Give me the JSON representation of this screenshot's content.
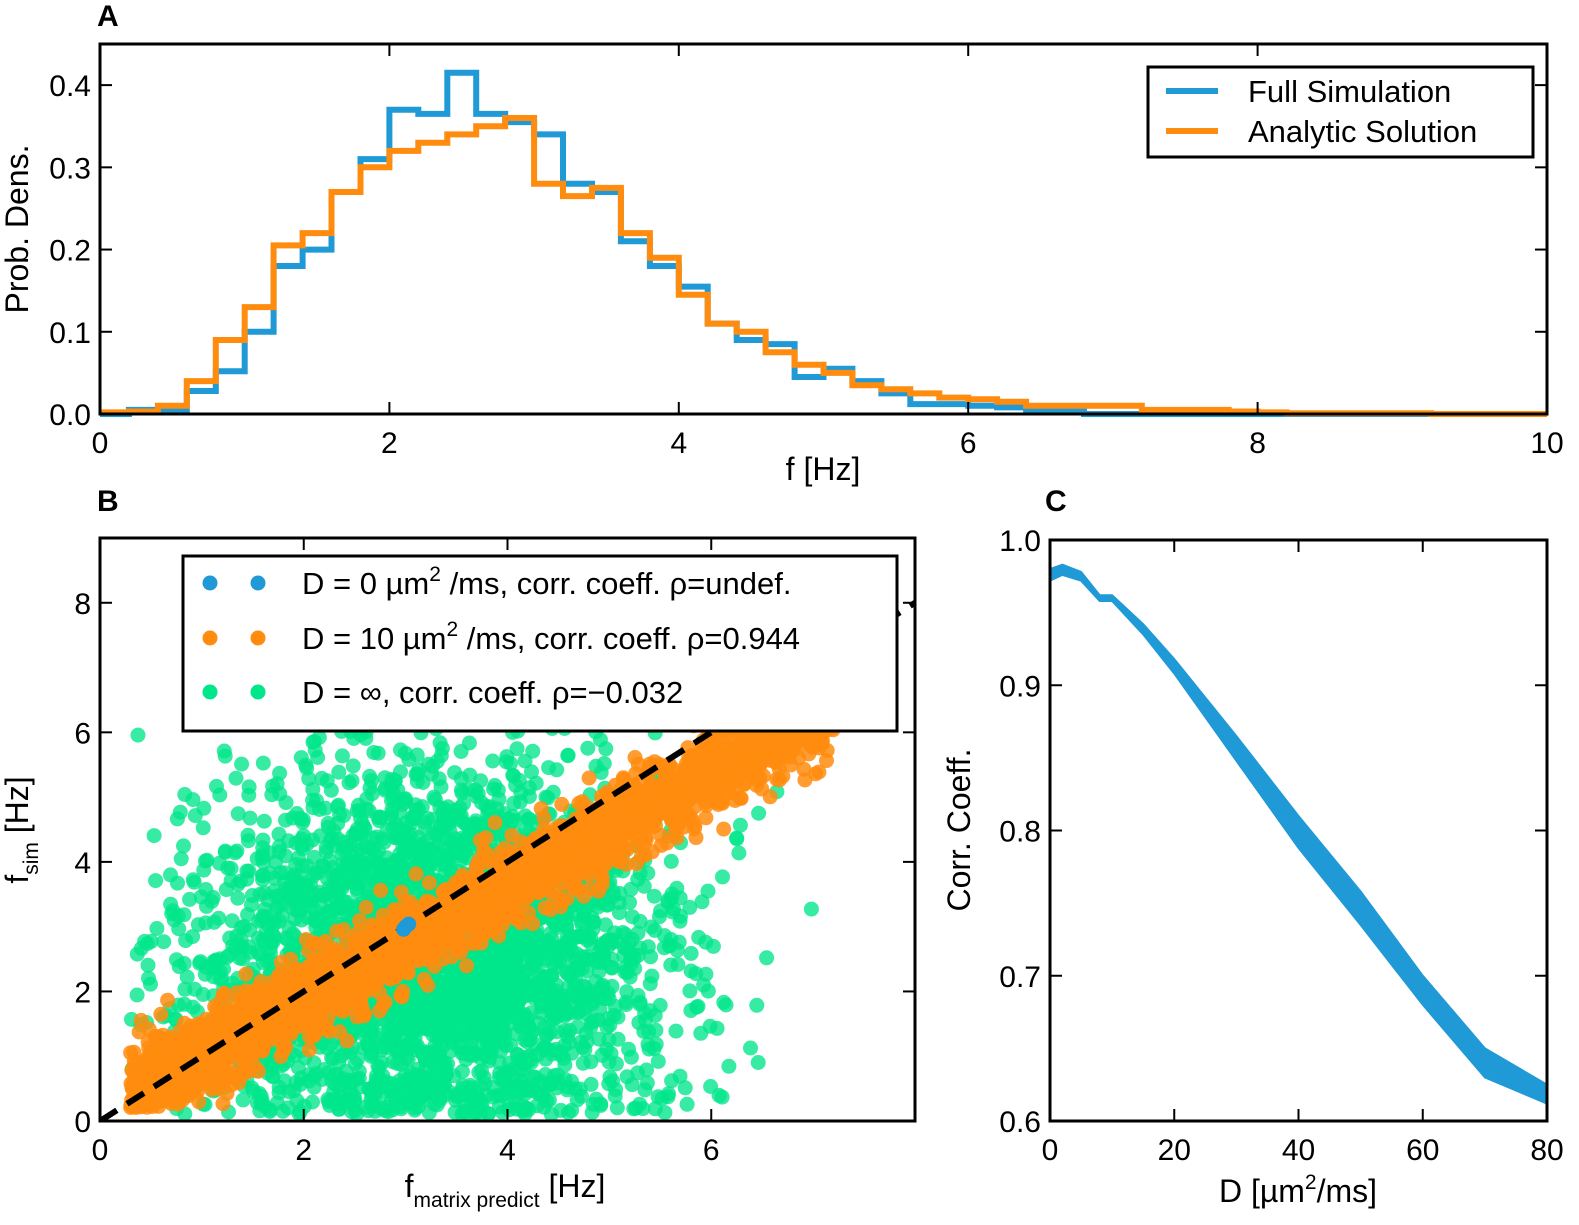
{
  "chart_data": [
    {
      "panel": "A",
      "type": "line",
      "style": "step-histogram",
      "xlabel": "f [Hz]",
      "ylabel": "Prob. Dens.",
      "xlim": [
        0,
        10
      ],
      "ylim": [
        0,
        0.45
      ],
      "xticks": [
        0,
        2,
        4,
        6,
        8,
        10
      ],
      "yticks": [
        0.0,
        0.1,
        0.2,
        0.3,
        0.4
      ],
      "ytick_labels": [
        "0.0",
        "0.1",
        "0.2",
        "0.3",
        "0.4"
      ],
      "legend_position": "top-right",
      "bin_edges": [
        0,
        0.2,
        0.4,
        0.6,
        0.8,
        1.0,
        1.2,
        1.4,
        1.6,
        1.8,
        2.0,
        2.2,
        2.4,
        2.6,
        2.8,
        3.0,
        3.2,
        3.4,
        3.6,
        3.8,
        4.0,
        4.2,
        4.4,
        4.6,
        4.8,
        5.0,
        5.2,
        5.4,
        5.6,
        5.8,
        6.0,
        6.2,
        6.4,
        6.6,
        6.8,
        7.0,
        7.2,
        7.4,
        7.6,
        7.8,
        8.0,
        8.2,
        8.4,
        8.6,
        8.8,
        9.0,
        9.2,
        9.4,
        9.6,
        9.8,
        10.0
      ],
      "series": [
        {
          "name": "Full Simulation",
          "color": "#1f9ad6",
          "values": [
            0.0,
            0.005,
            0.005,
            0.028,
            0.052,
            0.1,
            0.18,
            0.2,
            0.27,
            0.31,
            0.37,
            0.365,
            0.415,
            0.365,
            0.355,
            0.34,
            0.28,
            0.27,
            0.21,
            0.18,
            0.155,
            0.11,
            0.09,
            0.085,
            0.045,
            0.055,
            0.04,
            0.025,
            0.012,
            0.012,
            0.01,
            0.008,
            0.005,
            0.003,
            0.0,
            0.0,
            0.0,
            0.0,
            0.0,
            0.0,
            0.0,
            0.0,
            0.0,
            0.0,
            0.0,
            0.0,
            0.0,
            0.0,
            0.0,
            0.0
          ]
        },
        {
          "name": "Analytic Solution",
          "color": "#ff8c0e",
          "values": [
            0.002,
            0.003,
            0.01,
            0.04,
            0.09,
            0.13,
            0.205,
            0.22,
            0.27,
            0.3,
            0.32,
            0.33,
            0.34,
            0.35,
            0.36,
            0.28,
            0.265,
            0.275,
            0.22,
            0.19,
            0.145,
            0.11,
            0.1,
            0.075,
            0.06,
            0.05,
            0.035,
            0.03,
            0.025,
            0.02,
            0.018,
            0.015,
            0.01,
            0.01,
            0.01,
            0.01,
            0.005,
            0.005,
            0.005,
            0.003,
            0.002,
            0.001,
            0.001,
            0.001,
            0.001,
            0.001,
            0.0,
            0.0,
            0.0,
            0.0
          ]
        }
      ]
    },
    {
      "panel": "B",
      "type": "scatter",
      "xlabel_main": "f",
      "xlabel_sub": "matrix predict",
      "xlabel_unit": " [Hz]",
      "ylabel_main": "f",
      "ylabel_sub": "sim",
      "ylabel_unit": " [Hz]",
      "xlim": [
        0,
        8
      ],
      "ylim": [
        0,
        9
      ],
      "xticks": [
        0,
        2,
        4,
        6
      ],
      "yticks": [
        0,
        2,
        4,
        6,
        8
      ],
      "legend_position": "top",
      "identity_line": {
        "x": [
          0,
          8
        ],
        "y": [
          0,
          8
        ],
        "color": "#000000",
        "style": "dashed"
      },
      "series": [
        {
          "name_main": "D = 0 µm",
          "name_sup": "2",
          "name_rest": " /ms, corr. coeff. ρ=undef.",
          "color": "#1f9ad6",
          "points": [
            [
              3.0,
              3.0
            ],
            [
              2.98,
              2.96
            ],
            [
              3.03,
              3.04
            ]
          ]
        },
        {
          "name_main": "D = 10 µm",
          "name_sup": "2",
          "name_rest": " /ms, corr. coeff. ρ=0.944",
          "color": "#ff8c0e",
          "generator": {
            "n": 2600,
            "x_range": [
              0.3,
              7.2
            ],
            "slope": 0.87,
            "intercept": 0.15,
            "noise_sd": 0.32,
            "seed": 11
          }
        },
        {
          "name_main": "D = ∞, corr. coeff. ρ=−0.032",
          "name_sup": "",
          "name_rest": "",
          "color": "#00e68a",
          "generator": {
            "n": 3200,
            "x_center": 3.3,
            "x_sd": 1.15,
            "y_center": 2.6,
            "y_sd": 1.45,
            "seed": 7
          }
        }
      ]
    },
    {
      "panel": "C",
      "type": "area",
      "xlabel_main": "D [µm",
      "xlabel_sup": "2",
      "xlabel_rest": "/ms]",
      "ylabel": "Corr. Coeff.",
      "xlim": [
        0,
        80
      ],
      "ylim": [
        0.6,
        1.0
      ],
      "xticks": [
        0,
        20,
        40,
        60,
        80
      ],
      "yticks": [
        0.6,
        0.7,
        0.8,
        0.9,
        1.0
      ],
      "ytick_labels": [
        "0.6",
        "0.7",
        "0.8",
        "0.9",
        "1.0"
      ],
      "color": "#1f9ad6",
      "x": [
        0,
        2,
        5,
        8,
        10,
        15,
        20,
        30,
        40,
        50,
        60,
        70,
        80
      ],
      "upper": [
        0.98,
        0.983,
        0.978,
        0.962,
        0.962,
        0.942,
        0.918,
        0.865,
        0.81,
        0.758,
        0.7,
        0.65,
        0.625
      ],
      "lower": [
        0.972,
        0.976,
        0.972,
        0.958,
        0.958,
        0.935,
        0.908,
        0.848,
        0.788,
        0.735,
        0.68,
        0.63,
        0.612
      ]
    }
  ]
}
